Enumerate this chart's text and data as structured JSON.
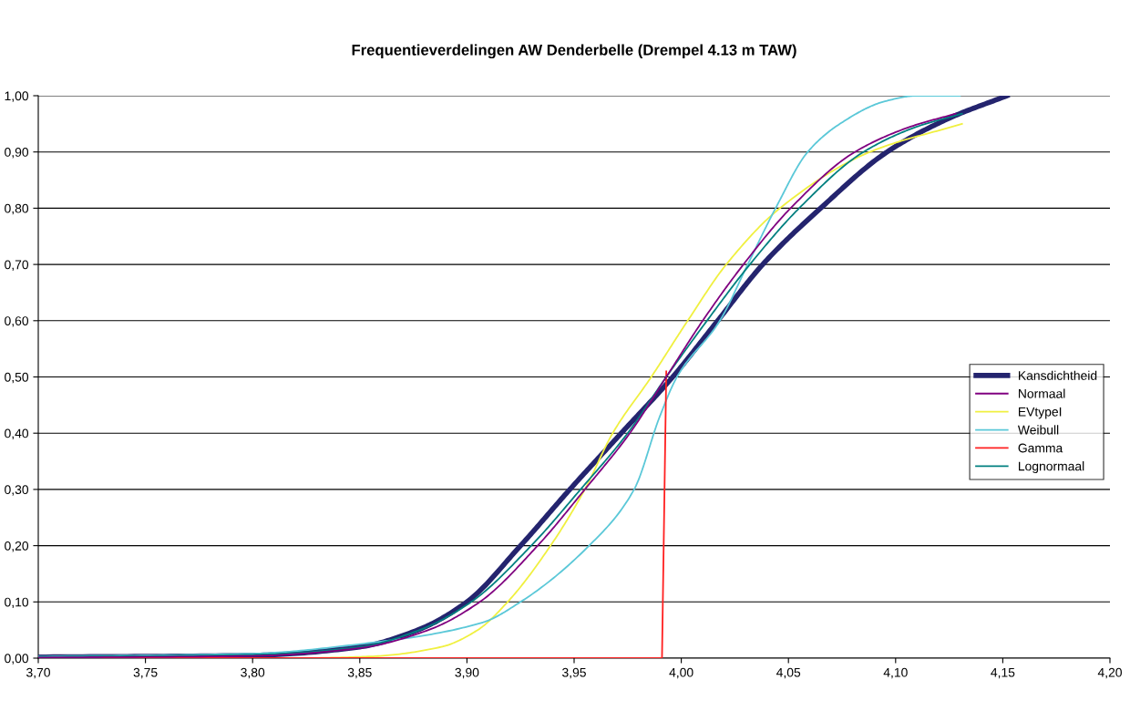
{
  "chart_data": {
    "type": "line",
    "title": "Frequentieverdelingen AW Denderbelle (Drempel 4.13 m TAW)",
    "series": [
      {
        "name": "Kansdichtheid",
        "color": "#24246e",
        "x": [
          3.7,
          3.8,
          3.85,
          3.877,
          3.9,
          3.925,
          3.948,
          3.972,
          3.996,
          4.017,
          4.038,
          4.065,
          4.096,
          4.125,
          4.152
        ],
        "values": [
          0.002,
          0.005,
          0.02,
          0.05,
          0.1,
          0.2,
          0.3,
          0.4,
          0.5,
          0.6,
          0.7,
          0.8,
          0.9,
          0.96,
          1.0
        ]
      },
      {
        "name": "Normaal",
        "color": "#800080",
        "x": [
          3.7,
          3.8,
          3.85,
          3.882,
          3.906,
          3.933,
          3.955,
          3.976,
          3.993,
          4.01,
          4.029,
          4.051,
          4.081,
          4.107,
          4.128
        ],
        "values": [
          0.001,
          0.004,
          0.018,
          0.05,
          0.1,
          0.2,
          0.3,
          0.4,
          0.5,
          0.6,
          0.7,
          0.8,
          0.9,
          0.945,
          0.968
        ]
      },
      {
        "name": "EVtypeI",
        "color": "#f0f040",
        "x": [
          3.7,
          3.82,
          3.855,
          3.888,
          3.905,
          3.919,
          3.939,
          3.955,
          3.968,
          3.986,
          4.003,
          4.021,
          4.046,
          4.088,
          4.131
        ],
        "values": [
          0.0,
          0.0,
          0.003,
          0.02,
          0.05,
          0.1,
          0.2,
          0.3,
          0.4,
          0.5,
          0.6,
          0.7,
          0.8,
          0.9,
          0.95
        ]
      },
      {
        "name": "Weibull",
        "color": "#5bc8d8",
        "x": [
          3.7,
          3.8,
          3.85,
          3.907,
          3.925,
          3.957,
          3.978,
          3.99,
          3.998,
          4.018,
          4.031,
          4.044,
          4.059,
          4.074,
          4.095,
          4.11,
          4.13
        ],
        "values": [
          0.003,
          0.008,
          0.025,
          0.063,
          0.1,
          0.2,
          0.3,
          0.43,
          0.5,
          0.6,
          0.7,
          0.8,
          0.9,
          0.95,
          0.99,
          1.0,
          1.0
        ]
      },
      {
        "name": "Gamma",
        "color": "#ff2020",
        "x": [
          3.7,
          3.991,
          3.993
        ],
        "values": [
          0.0,
          0.0,
          0.51
        ]
      },
      {
        "name": "Lognormaal",
        "color": "#008080",
        "x": [
          3.7,
          3.8,
          3.85,
          3.878,
          3.902,
          3.93,
          3.953,
          3.975,
          3.993,
          4.012,
          4.032,
          4.055,
          4.085,
          4.11,
          4.131
        ],
        "values": [
          0.002,
          0.006,
          0.02,
          0.05,
          0.1,
          0.2,
          0.3,
          0.4,
          0.5,
          0.6,
          0.7,
          0.8,
          0.9,
          0.945,
          0.968
        ]
      }
    ],
    "xlim": [
      3.7,
      4.2
    ],
    "xticks": [
      {
        "value": 3.7,
        "label": "3,70"
      },
      {
        "value": 3.75,
        "label": "3,75"
      },
      {
        "value": 3.8,
        "label": "3,80"
      },
      {
        "value": 3.85,
        "label": "3,85"
      },
      {
        "value": 3.9,
        "label": "3,90"
      },
      {
        "value": 3.95,
        "label": "3,95"
      },
      {
        "value": 4.0,
        "label": "4,00"
      },
      {
        "value": 4.05,
        "label": "4,05"
      },
      {
        "value": 4.1,
        "label": "4,10"
      },
      {
        "value": 4.15,
        "label": "4,15"
      },
      {
        "value": 4.2,
        "label": "4,20"
      }
    ],
    "ylim": [
      0,
      1
    ],
    "yticks": [
      {
        "value": 0,
        "label": "0,00"
      },
      {
        "value": 0.1,
        "label": "0,10"
      },
      {
        "value": 0.2,
        "label": "0,20"
      },
      {
        "value": 0.3,
        "label": "0,30"
      },
      {
        "value": 0.4,
        "label": "0,40"
      },
      {
        "value": 0.5,
        "label": "0,50"
      },
      {
        "value": 0.6,
        "label": "0,60"
      },
      {
        "value": 0.7,
        "label": "0,70"
      },
      {
        "value": 0.8,
        "label": "0,80"
      },
      {
        "value": 0.9,
        "label": "0,90"
      },
      {
        "value": 1.0,
        "label": "1,00"
      }
    ],
    "grid": "y",
    "legend": "right",
    "marker": "none",
    "line_style": "solid"
  }
}
